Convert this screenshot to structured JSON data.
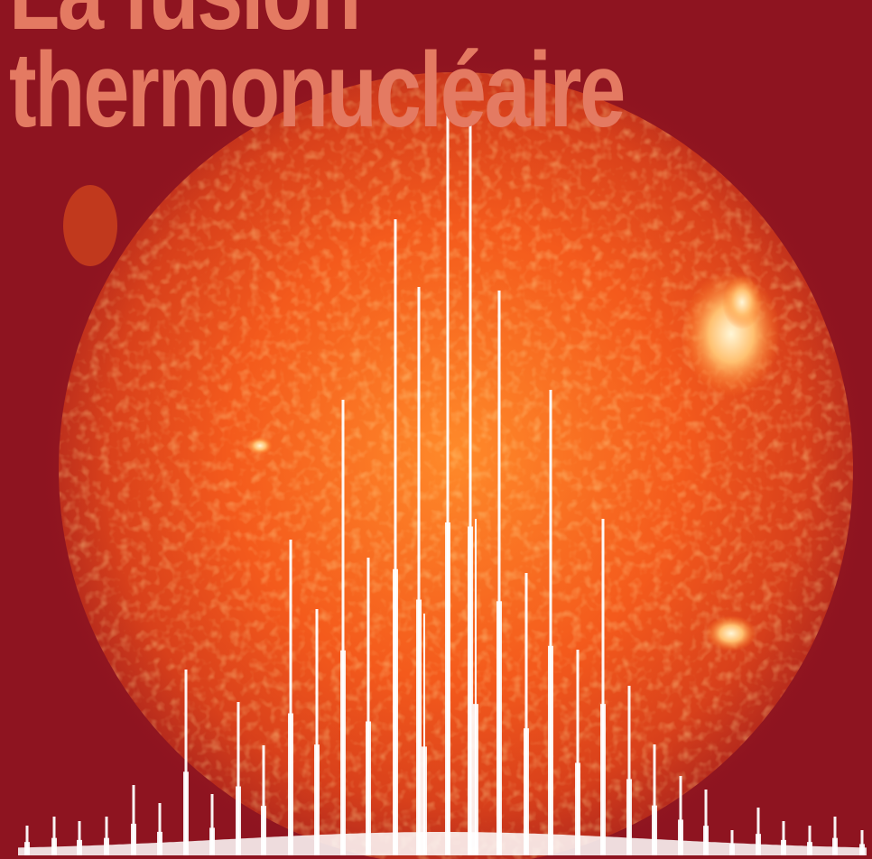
{
  "cover": {
    "title_line1": "La fusion",
    "title_line2": "thermonucléaire"
  },
  "colors": {
    "background": "#8e1420",
    "sun_core": "#ff7a22",
    "sun_limb": "#c7361b",
    "title": "#e47a62",
    "spectrum": "#ffffff",
    "flare": "#fff0c8"
  },
  "images": {
    "sun": "solar-disk-photo",
    "spectrum": "emission-line-spectrum"
  }
}
